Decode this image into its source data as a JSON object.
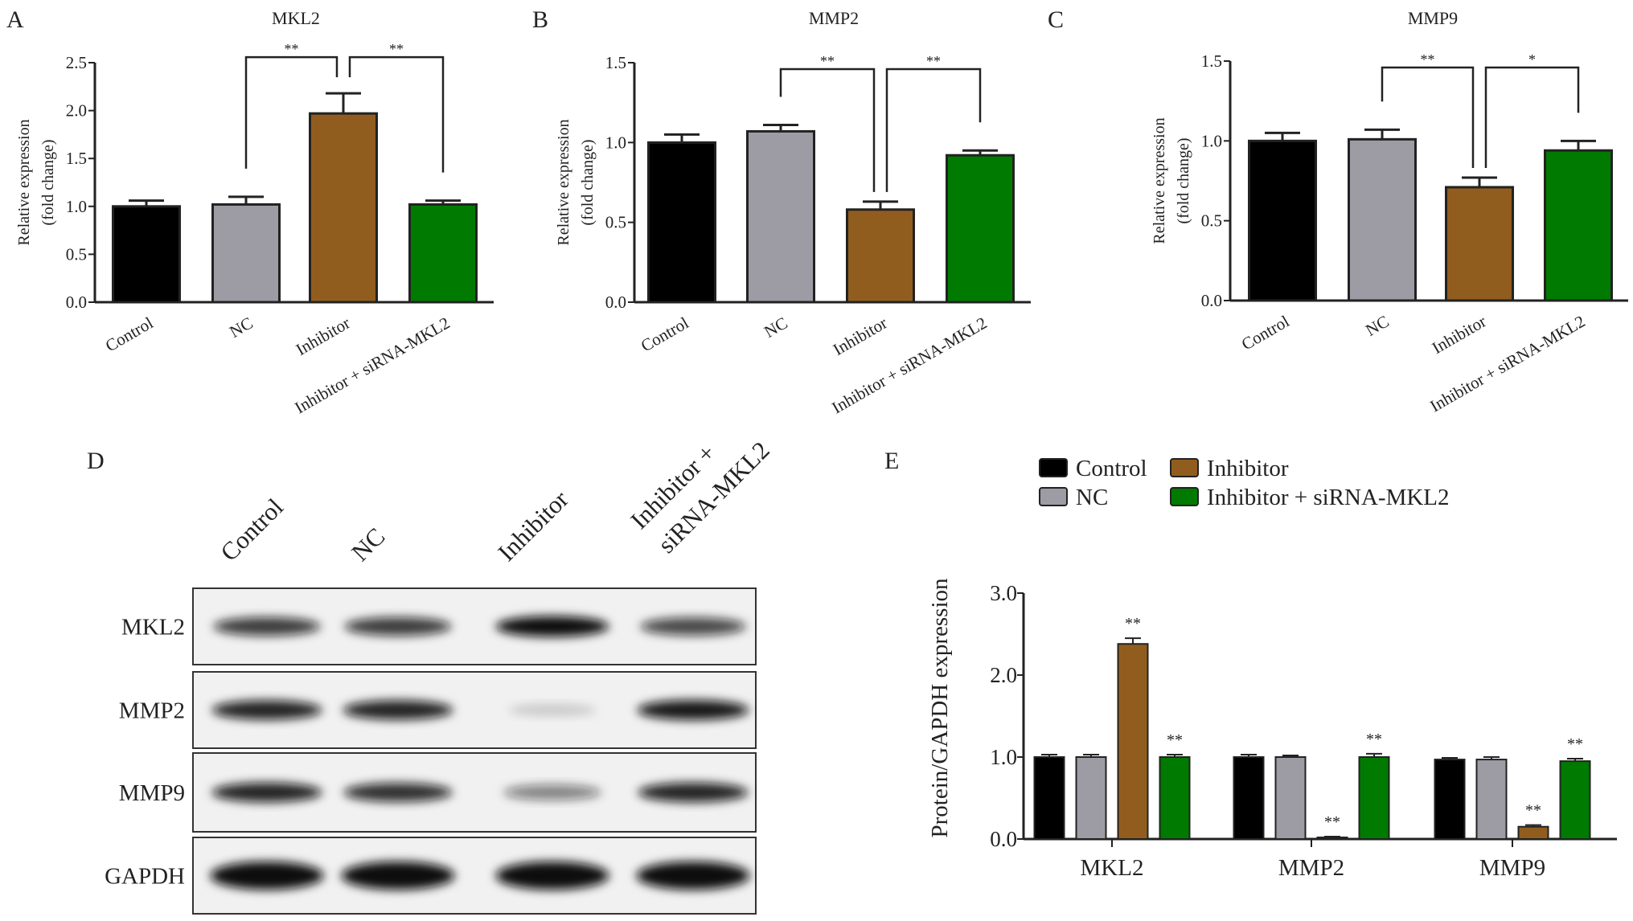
{
  "colors": {
    "Control": "#000000",
    "NC": "#9d9ca4",
    "Inhibitor": "#915d1f",
    "Inhibitor + siRNA-MKL2": "#007a00"
  },
  "chart_data": [
    {
      "panel": "A",
      "type": "bar",
      "title": "MKL2",
      "ylabel": [
        "Relative expression",
        "(fold change)"
      ],
      "ylim": [
        0,
        2.5
      ],
      "yticks": [
        "0.0",
        "0.5",
        "1.0",
        "1.5",
        "2.0",
        "2.5"
      ],
      "categories": [
        "Control",
        "NC",
        "Inhibitor",
        "Inhibitor + siRNA-MKL2"
      ],
      "values": [
        1.0,
        1.02,
        1.97,
        1.02
      ],
      "errors": [
        0.06,
        0.08,
        0.21,
        0.04
      ],
      "significance": [
        {
          "from": 1,
          "to": 2,
          "label": "**"
        },
        {
          "from": 2,
          "to": 3,
          "label": "**"
        }
      ]
    },
    {
      "panel": "B",
      "type": "bar",
      "title": "MMP2",
      "ylabel": [
        "Relative expression",
        "(fold change)"
      ],
      "ylim": [
        0,
        1.5
      ],
      "yticks": [
        "0.0",
        "0.5",
        "1.0",
        "1.5"
      ],
      "categories": [
        "Control",
        "NC",
        "Inhibitor",
        "Inhibitor + siRNA-MKL2"
      ],
      "values": [
        1.0,
        1.07,
        0.58,
        0.92
      ],
      "errors": [
        0.05,
        0.04,
        0.05,
        0.03
      ],
      "significance": [
        {
          "from": 1,
          "to": 2,
          "label": "**"
        },
        {
          "from": 2,
          "to": 3,
          "label": "**"
        }
      ]
    },
    {
      "panel": "C",
      "type": "bar",
      "title": "MMP9",
      "ylabel": [
        "Relative expression",
        "(fold change)"
      ],
      "ylim": [
        0,
        1.5
      ],
      "yticks": [
        "0.0",
        "0.5",
        "1.0",
        "1.5"
      ],
      "categories": [
        "Control",
        "NC",
        "Inhibitor",
        "Inhibitor + siRNA-MKL2"
      ],
      "values": [
        1.0,
        1.01,
        0.71,
        0.94
      ],
      "errors": [
        0.05,
        0.06,
        0.06,
        0.06
      ],
      "significance": [
        {
          "from": 1,
          "to": 2,
          "label": "**"
        },
        {
          "from": 2,
          "to": 3,
          "label": "*"
        }
      ]
    },
    {
      "panel": "E",
      "type": "bar",
      "ylabel": [
        "Protein/GAPDH expression"
      ],
      "ylim": [
        0,
        3.0
      ],
      "yticks": [
        "0.0",
        "1.0",
        "2.0",
        "3.0"
      ],
      "categories": [
        "MKL2",
        "MMP2",
        "MMP9"
      ],
      "legend": [
        "Control",
        "NC",
        "Inhibitor",
        "Inhibitor + siRNA-MKL2"
      ],
      "series": [
        {
          "name": "Control",
          "values": [
            1.0,
            1.0,
            0.97
          ],
          "errors": [
            0.03,
            0.03,
            0.02
          ],
          "marks": [
            "",
            "",
            ""
          ]
        },
        {
          "name": "NC",
          "values": [
            1.0,
            1.0,
            0.97
          ],
          "errors": [
            0.03,
            0.02,
            0.03
          ],
          "marks": [
            "",
            "",
            ""
          ]
        },
        {
          "name": "Inhibitor",
          "values": [
            2.38,
            0.02,
            0.15
          ],
          "errors": [
            0.07,
            0.01,
            0.02
          ],
          "marks": [
            "**",
            "**",
            "**"
          ]
        },
        {
          "name": "Inhibitor + siRNA-MKL2",
          "values": [
            1.0,
            1.0,
            0.95
          ],
          "errors": [
            0.03,
            0.04,
            0.03
          ],
          "marks": [
            "**",
            "**",
            "**"
          ]
        }
      ]
    }
  ],
  "blot": {
    "panel": "D",
    "lanes": [
      "Control",
      "NC",
      "Inhibitor",
      "Inhibitor + siRNA-MKL2"
    ],
    "lane_lines": [
      [
        "Control"
      ],
      [
        "NC"
      ],
      [
        "Inhibitor"
      ],
      [
        "Inhibitor +",
        "siRNA-MKL2"
      ]
    ],
    "rows": [
      {
        "name": "MKL2",
        "intensity": [
          0.75,
          0.75,
          0.95,
          0.7
        ]
      },
      {
        "name": "MMP2",
        "intensity": [
          0.85,
          0.85,
          0.12,
          0.9
        ]
      },
      {
        "name": "MMP9",
        "intensity": [
          0.85,
          0.8,
          0.45,
          0.85
        ]
      },
      {
        "name": "GAPDH",
        "intensity": [
          0.95,
          0.95,
          0.95,
          0.95
        ]
      }
    ]
  }
}
